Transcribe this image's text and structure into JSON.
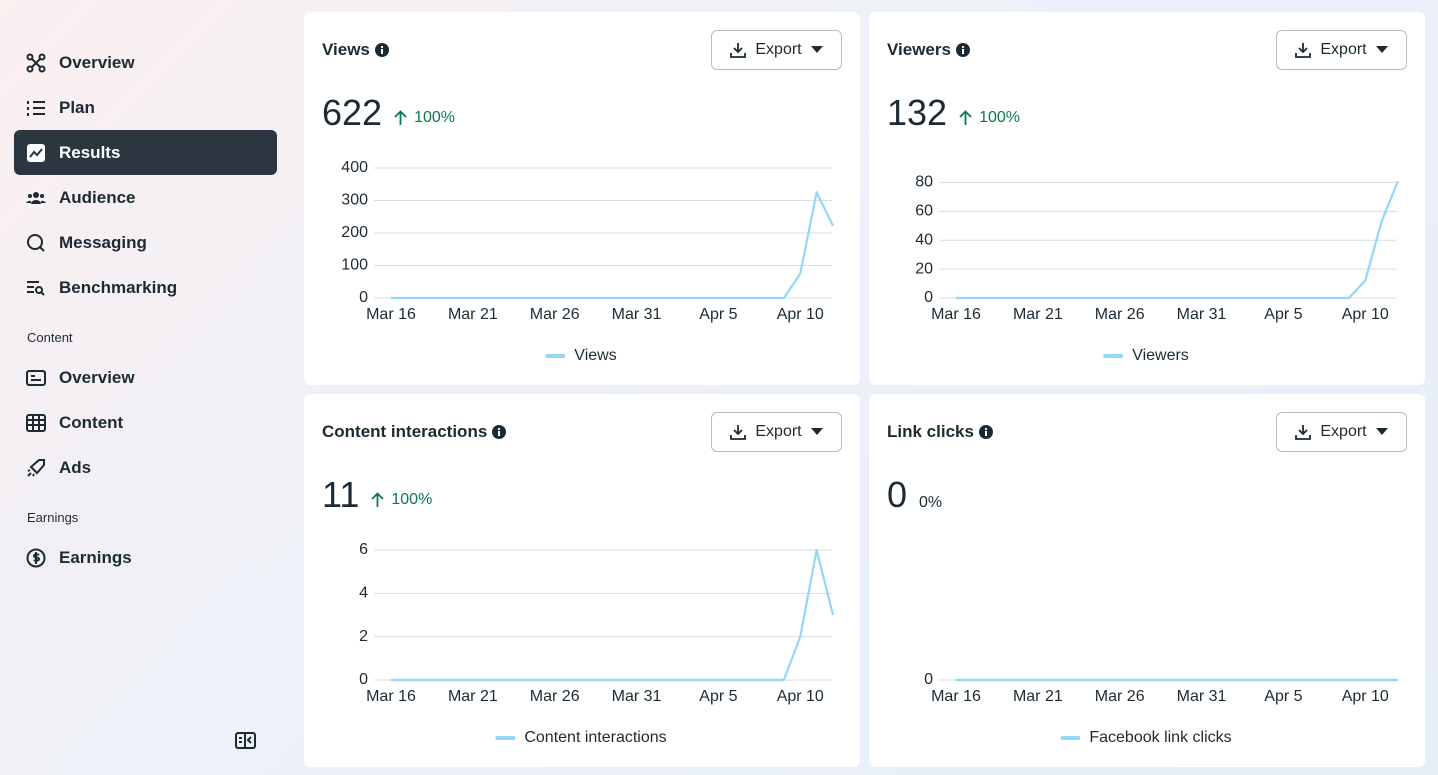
{
  "sidebar": {
    "groups": [
      {
        "items": [
          {
            "label": "Overview"
          },
          {
            "label": "Plan"
          },
          {
            "label": "Results",
            "selected": true
          },
          {
            "label": "Audience"
          },
          {
            "label": "Messaging"
          },
          {
            "label": "Benchmarking"
          }
        ]
      },
      {
        "heading": "Content",
        "items": [
          {
            "label": "Overview"
          },
          {
            "label": "Content"
          },
          {
            "label": "Ads"
          }
        ]
      },
      {
        "heading": "Earnings",
        "items": [
          {
            "label": "Earnings"
          }
        ]
      }
    ]
  },
  "cards": [
    {
      "title": "Views",
      "button": "Export",
      "metric": 622,
      "change": "100%",
      "trend": "up"
    },
    {
      "title": "Viewers",
      "button": "Export",
      "metric": 132,
      "change": "100%",
      "trend": "up"
    },
    {
      "title": "Content interactions",
      "button": "Export",
      "metric": 11,
      "change": "100%",
      "trend": "up"
    },
    {
      "title": "Link clicks",
      "button": "Export",
      "metric": 0,
      "change": "0%"
    }
  ],
  "chart_data": [
    {
      "type": "line",
      "categories": [
        "Mar 16",
        null,
        null,
        null,
        null,
        "Mar 21",
        null,
        null,
        null,
        null,
        "Mar 26",
        null,
        null,
        null,
        null,
        "Mar 31",
        null,
        null,
        null,
        null,
        "Apr 5",
        null,
        null,
        null,
        null,
        "Apr 10",
        null,
        null
      ],
      "series": [
        {
          "name": "Views",
          "color": "#93d7f7",
          "values": [
            0,
            0,
            0,
            0,
            0,
            0,
            0,
            0,
            0,
            0,
            0,
            0,
            0,
            0,
            0,
            0,
            0,
            0,
            0,
            0,
            0,
            0,
            0,
            0,
            0,
            75,
            325,
            222
          ]
        }
      ],
      "ylim": [
        0,
        400
      ],
      "yticks": [
        0,
        100,
        200,
        300,
        400
      ],
      "grid": true,
      "legend": "bottom"
    },
    {
      "type": "line",
      "categories": [
        "Mar 16",
        null,
        null,
        null,
        null,
        "Mar 21",
        null,
        null,
        null,
        null,
        "Mar 26",
        null,
        null,
        null,
        null,
        "Mar 31",
        null,
        null,
        null,
        null,
        "Apr 5",
        null,
        null,
        null,
        null,
        "Apr 10",
        null,
        null
      ],
      "series": [
        {
          "name": "Viewers",
          "color": "#93d7f7",
          "values": [
            0,
            0,
            0,
            0,
            0,
            0,
            0,
            0,
            0,
            0,
            0,
            0,
            0,
            0,
            0,
            0,
            0,
            0,
            0,
            0,
            0,
            0,
            0,
            0,
            0,
            12,
            53,
            81
          ]
        }
      ],
      "ylim": [
        0,
        90
      ],
      "yticks": [
        0,
        20,
        40,
        60,
        80
      ],
      "grid": true,
      "legend": "bottom"
    },
    {
      "type": "line",
      "categories": [
        "Mar 16",
        null,
        null,
        null,
        null,
        "Mar 21",
        null,
        null,
        null,
        null,
        "Mar 26",
        null,
        null,
        null,
        null,
        "Mar 31",
        null,
        null,
        null,
        null,
        "Apr 5",
        null,
        null,
        null,
        null,
        "Apr 10",
        null,
        null
      ],
      "series": [
        {
          "name": "Content interactions",
          "color": "#93d7f7",
          "values": [
            0,
            0,
            0,
            0,
            0,
            0,
            0,
            0,
            0,
            0,
            0,
            0,
            0,
            0,
            0,
            0,
            0,
            0,
            0,
            0,
            0,
            0,
            0,
            0,
            0,
            2,
            6,
            3
          ]
        }
      ],
      "ylim": [
        0,
        6
      ],
      "yticks": [
        0,
        2,
        4,
        6
      ],
      "grid": true,
      "legend": "bottom"
    },
    {
      "type": "line",
      "categories": [
        "Mar 16",
        null,
        null,
        null,
        null,
        "Mar 21",
        null,
        null,
        null,
        null,
        "Mar 26",
        null,
        null,
        null,
        null,
        "Mar 31",
        null,
        null,
        null,
        null,
        "Apr 5",
        null,
        null,
        null,
        null,
        "Apr 10",
        null,
        null
      ],
      "series": [
        {
          "name": "Facebook link clicks",
          "color": "#93d7f7",
          "values": [
            0,
            0,
            0,
            0,
            0,
            0,
            0,
            0,
            0,
            0,
            0,
            0,
            0,
            0,
            0,
            0,
            0,
            0,
            0,
            0,
            0,
            0,
            0,
            0,
            0,
            0,
            0,
            0
          ]
        }
      ],
      "ylim": [
        0,
        1
      ],
      "yticks": [
        0
      ],
      "grid": true,
      "legend": "bottom"
    }
  ]
}
